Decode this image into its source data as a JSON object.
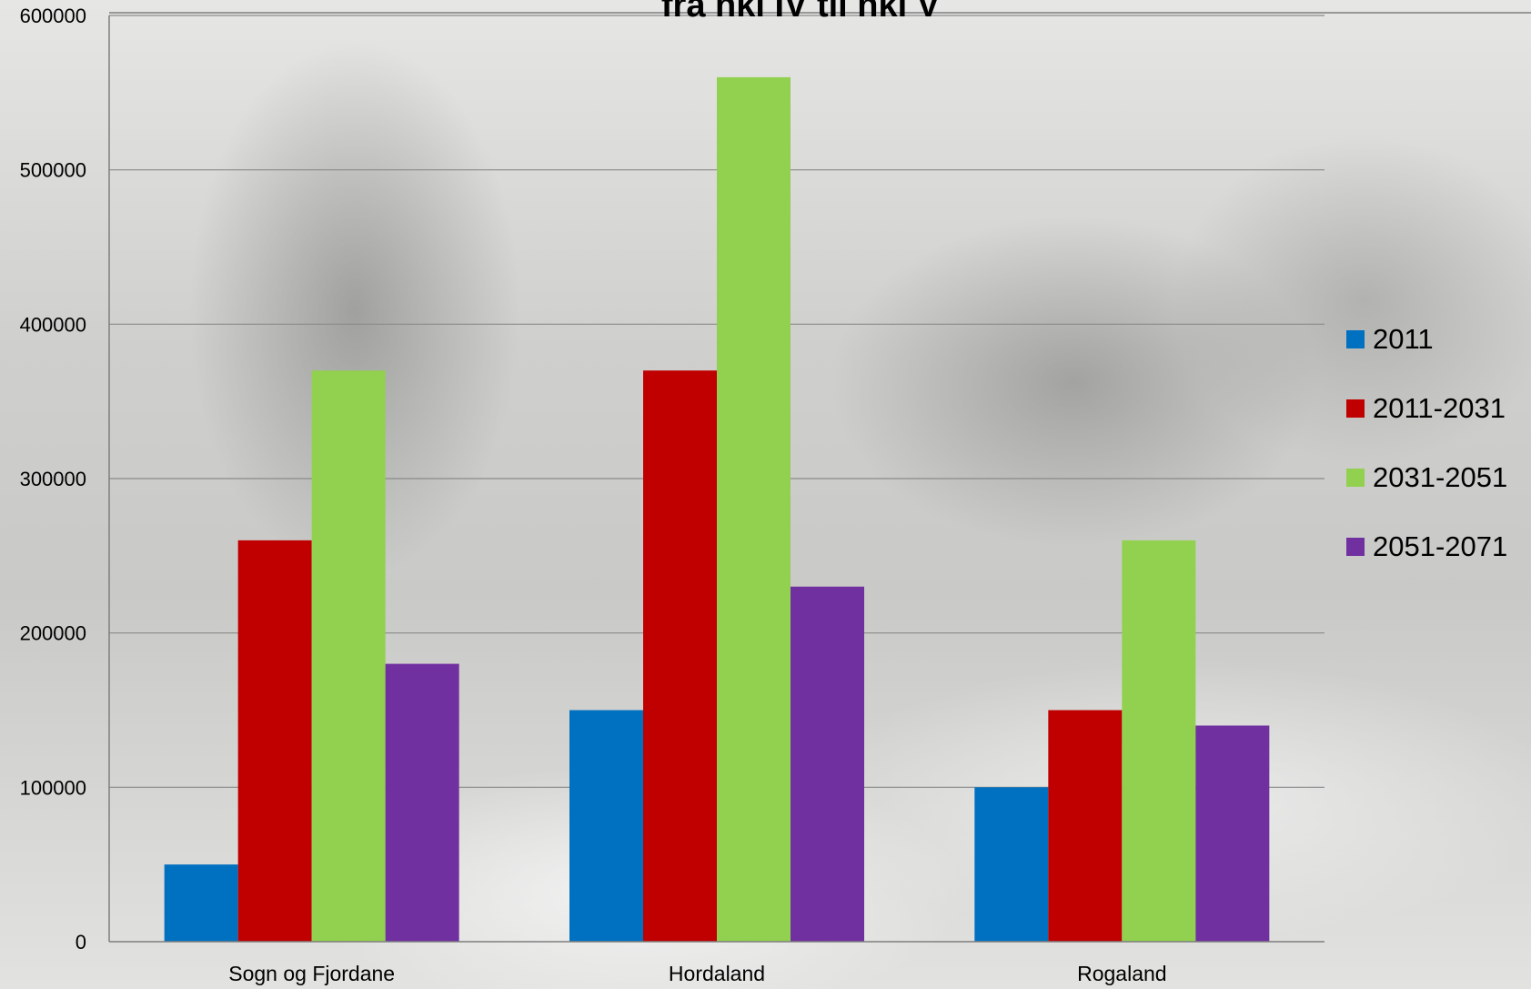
{
  "chart_data": {
    "type": "bar",
    "title": "fra nkl IV til nkl V",
    "categories": [
      "Sogn og Fjordane",
      "Hordaland",
      "Rogaland"
    ],
    "series": [
      {
        "name": "2011",
        "color": "#0070c0",
        "values": [
          50000,
          150000,
          100000
        ]
      },
      {
        "name": "2011-2031",
        "color": "#c00000",
        "values": [
          260000,
          370000,
          150000
        ]
      },
      {
        "name": "2031-2051",
        "color": "#92d050",
        "values": [
          370000,
          560000,
          260000
        ]
      },
      {
        "name": "2051-2071",
        "color": "#7030a0",
        "values": [
          180000,
          230000,
          140000
        ]
      }
    ],
    "yticks": [
      "0",
      "100000",
      "200000",
      "300000",
      "400000",
      "500000",
      "600000"
    ],
    "ylim": [
      0,
      600000
    ],
    "grid": true,
    "legend_position": "right",
    "xlabel": "",
    "ylabel": ""
  }
}
